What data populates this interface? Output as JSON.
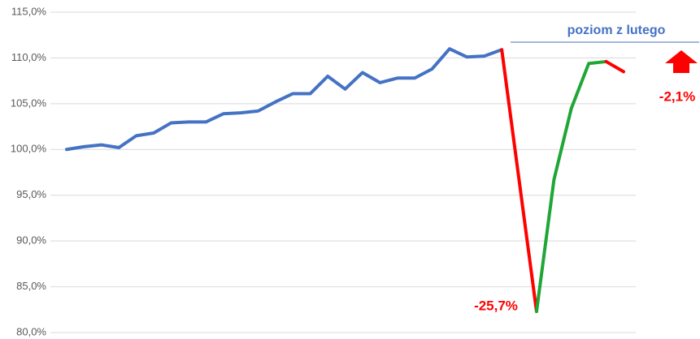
{
  "chart_data": {
    "type": "line",
    "categories": [
      null,
      null,
      null,
      null,
      null,
      null,
      null,
      null,
      null,
      null,
      null,
      null,
      null,
      null,
      null,
      null,
      null,
      null,
      null,
      null,
      null,
      null,
      null,
      null,
      null,
      null,
      null,
      null,
      null,
      null,
      null,
      null,
      null
    ],
    "series": [
      {
        "color": "#4472c4",
        "values": [
          100.0,
          100.3,
          100.5,
          100.2,
          101.5,
          101.8,
          102.9,
          103.0,
          103.0,
          103.9,
          104.0,
          104.2,
          105.2,
          106.1,
          106.1,
          108.0,
          106.6,
          108.4,
          107.3,
          107.8,
          107.8,
          108.8,
          111.0,
          110.1,
          110.2,
          110.9,
          null,
          null,
          null,
          null,
          null,
          null,
          null
        ]
      },
      {
        "color": "#ff0000",
        "values": [
          null,
          null,
          null,
          null,
          null,
          null,
          null,
          null,
          null,
          null,
          null,
          null,
          null,
          null,
          null,
          null,
          null,
          null,
          null,
          null,
          null,
          null,
          null,
          null,
          null,
          110.9,
          96.6,
          82.3,
          null,
          null,
          null,
          null,
          null
        ]
      },
      {
        "color": "#1fa637",
        "values": [
          null,
          null,
          null,
          null,
          null,
          null,
          null,
          null,
          null,
          null,
          null,
          null,
          null,
          null,
          null,
          null,
          null,
          null,
          null,
          null,
          null,
          null,
          null,
          null,
          null,
          null,
          null,
          82.3,
          96.7,
          104.5,
          109.4,
          109.6,
          null
        ]
      },
      {
        "color": "#ff0000",
        "values": [
          null,
          null,
          null,
          null,
          null,
          null,
          null,
          null,
          null,
          null,
          null,
          null,
          null,
          null,
          null,
          null,
          null,
          null,
          null,
          null,
          null,
          null,
          null,
          null,
          null,
          null,
          null,
          null,
          null,
          null,
          null,
          109.6,
          108.5
        ]
      }
    ],
    "ylim": [
      80,
      115
    ],
    "yticks": [
      {
        "value": 80,
        "label": "80,0%"
      },
      {
        "value": 85,
        "label": "85,0%"
      },
      {
        "value": 90,
        "label": "90,0%"
      },
      {
        "value": 95,
        "label": "95,0%"
      },
      {
        "value": 100,
        "label": "100,0%"
      },
      {
        "value": 105,
        "label": "105,0%"
      },
      {
        "value": 110,
        "label": "110,0%"
      },
      {
        "value": 115,
        "label": "115,0%"
      }
    ],
    "grid": true,
    "annotations": [
      "poziom z lutego",
      "-2,1%",
      "-25,7%"
    ]
  }
}
